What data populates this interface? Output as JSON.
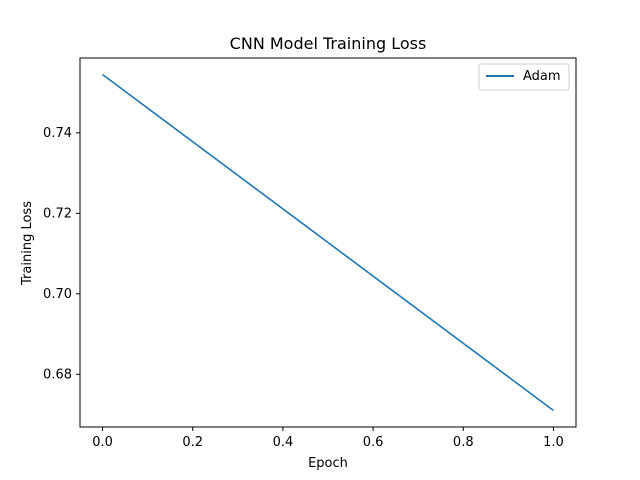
{
  "chart_data": {
    "type": "line",
    "title": "CNN Model Training Loss",
    "xlabel": "Epoch",
    "ylabel": "Training Loss",
    "xlim": [
      -0.05,
      1.05
    ],
    "ylim": [
      0.6669,
      0.7586
    ],
    "x_ticks": [
      0.0,
      0.2,
      0.4,
      0.6,
      0.8,
      1.0
    ],
    "x_tick_labels": [
      "0.0",
      "0.2",
      "0.4",
      "0.6",
      "0.8",
      "1.0"
    ],
    "y_ticks": [
      0.68,
      0.7,
      0.72,
      0.74
    ],
    "y_tick_labels": [
      "0.68",
      "0.70",
      "0.72",
      "0.74"
    ],
    "grid": false,
    "legend_position": "top-right",
    "series": [
      {
        "name": "Adam",
        "color": "#1f77b4",
        "x": [
          0.0,
          1.0
        ],
        "y": [
          0.7545,
          0.671
        ]
      }
    ]
  }
}
